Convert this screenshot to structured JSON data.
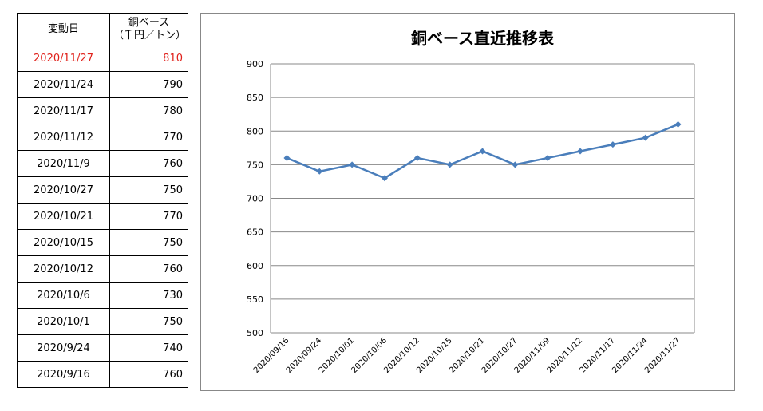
{
  "table": {
    "headers": {
      "date": "変動日",
      "value_line1": "銅ベース",
      "value_line2": "（千円／トン）"
    },
    "rows": [
      {
        "date": "2020/11/27",
        "value": "810",
        "highlight": true
      },
      {
        "date": "2020/11/24",
        "value": "790"
      },
      {
        "date": "2020/11/17",
        "value": "780"
      },
      {
        "date": "2020/11/12",
        "value": "770"
      },
      {
        "date": "2020/11/9",
        "value": "760"
      },
      {
        "date": "2020/10/27",
        "value": "750"
      },
      {
        "date": "2020/10/21",
        "value": "770"
      },
      {
        "date": "2020/10/15",
        "value": "750"
      },
      {
        "date": "2020/10/12",
        "value": "760"
      },
      {
        "date": "2020/10/6",
        "value": "730"
      },
      {
        "date": "2020/10/1",
        "value": "750"
      },
      {
        "date": "2020/9/24",
        "value": "740"
      },
      {
        "date": "2020/9/16",
        "value": "760"
      }
    ],
    "highlight_color": "#e0201a"
  },
  "chart_data": {
    "type": "line",
    "title": "銅ベース直近推移表",
    "x": [
      "2020/09/16",
      "2020/09/24",
      "2020/10/01",
      "2020/10/06",
      "2020/10/12",
      "2020/10/15",
      "2020/10/21",
      "2020/10/27",
      "2020/11/09",
      "2020/11/12",
      "2020/11/17",
      "2020/11/24",
      "2020/11/27"
    ],
    "series": [
      {
        "values": [
          760,
          740,
          750,
          730,
          760,
          750,
          770,
          750,
          760,
          770,
          780,
          790,
          810
        ],
        "color": "#4a7ebb",
        "marker": "diamond"
      }
    ],
    "ylim": [
      500,
      900
    ],
    "yticks": [
      500,
      550,
      600,
      650,
      700,
      750,
      800,
      850,
      900
    ],
    "xlabel": "",
    "ylabel": "",
    "grid": "horizontal",
    "legend": "none"
  }
}
